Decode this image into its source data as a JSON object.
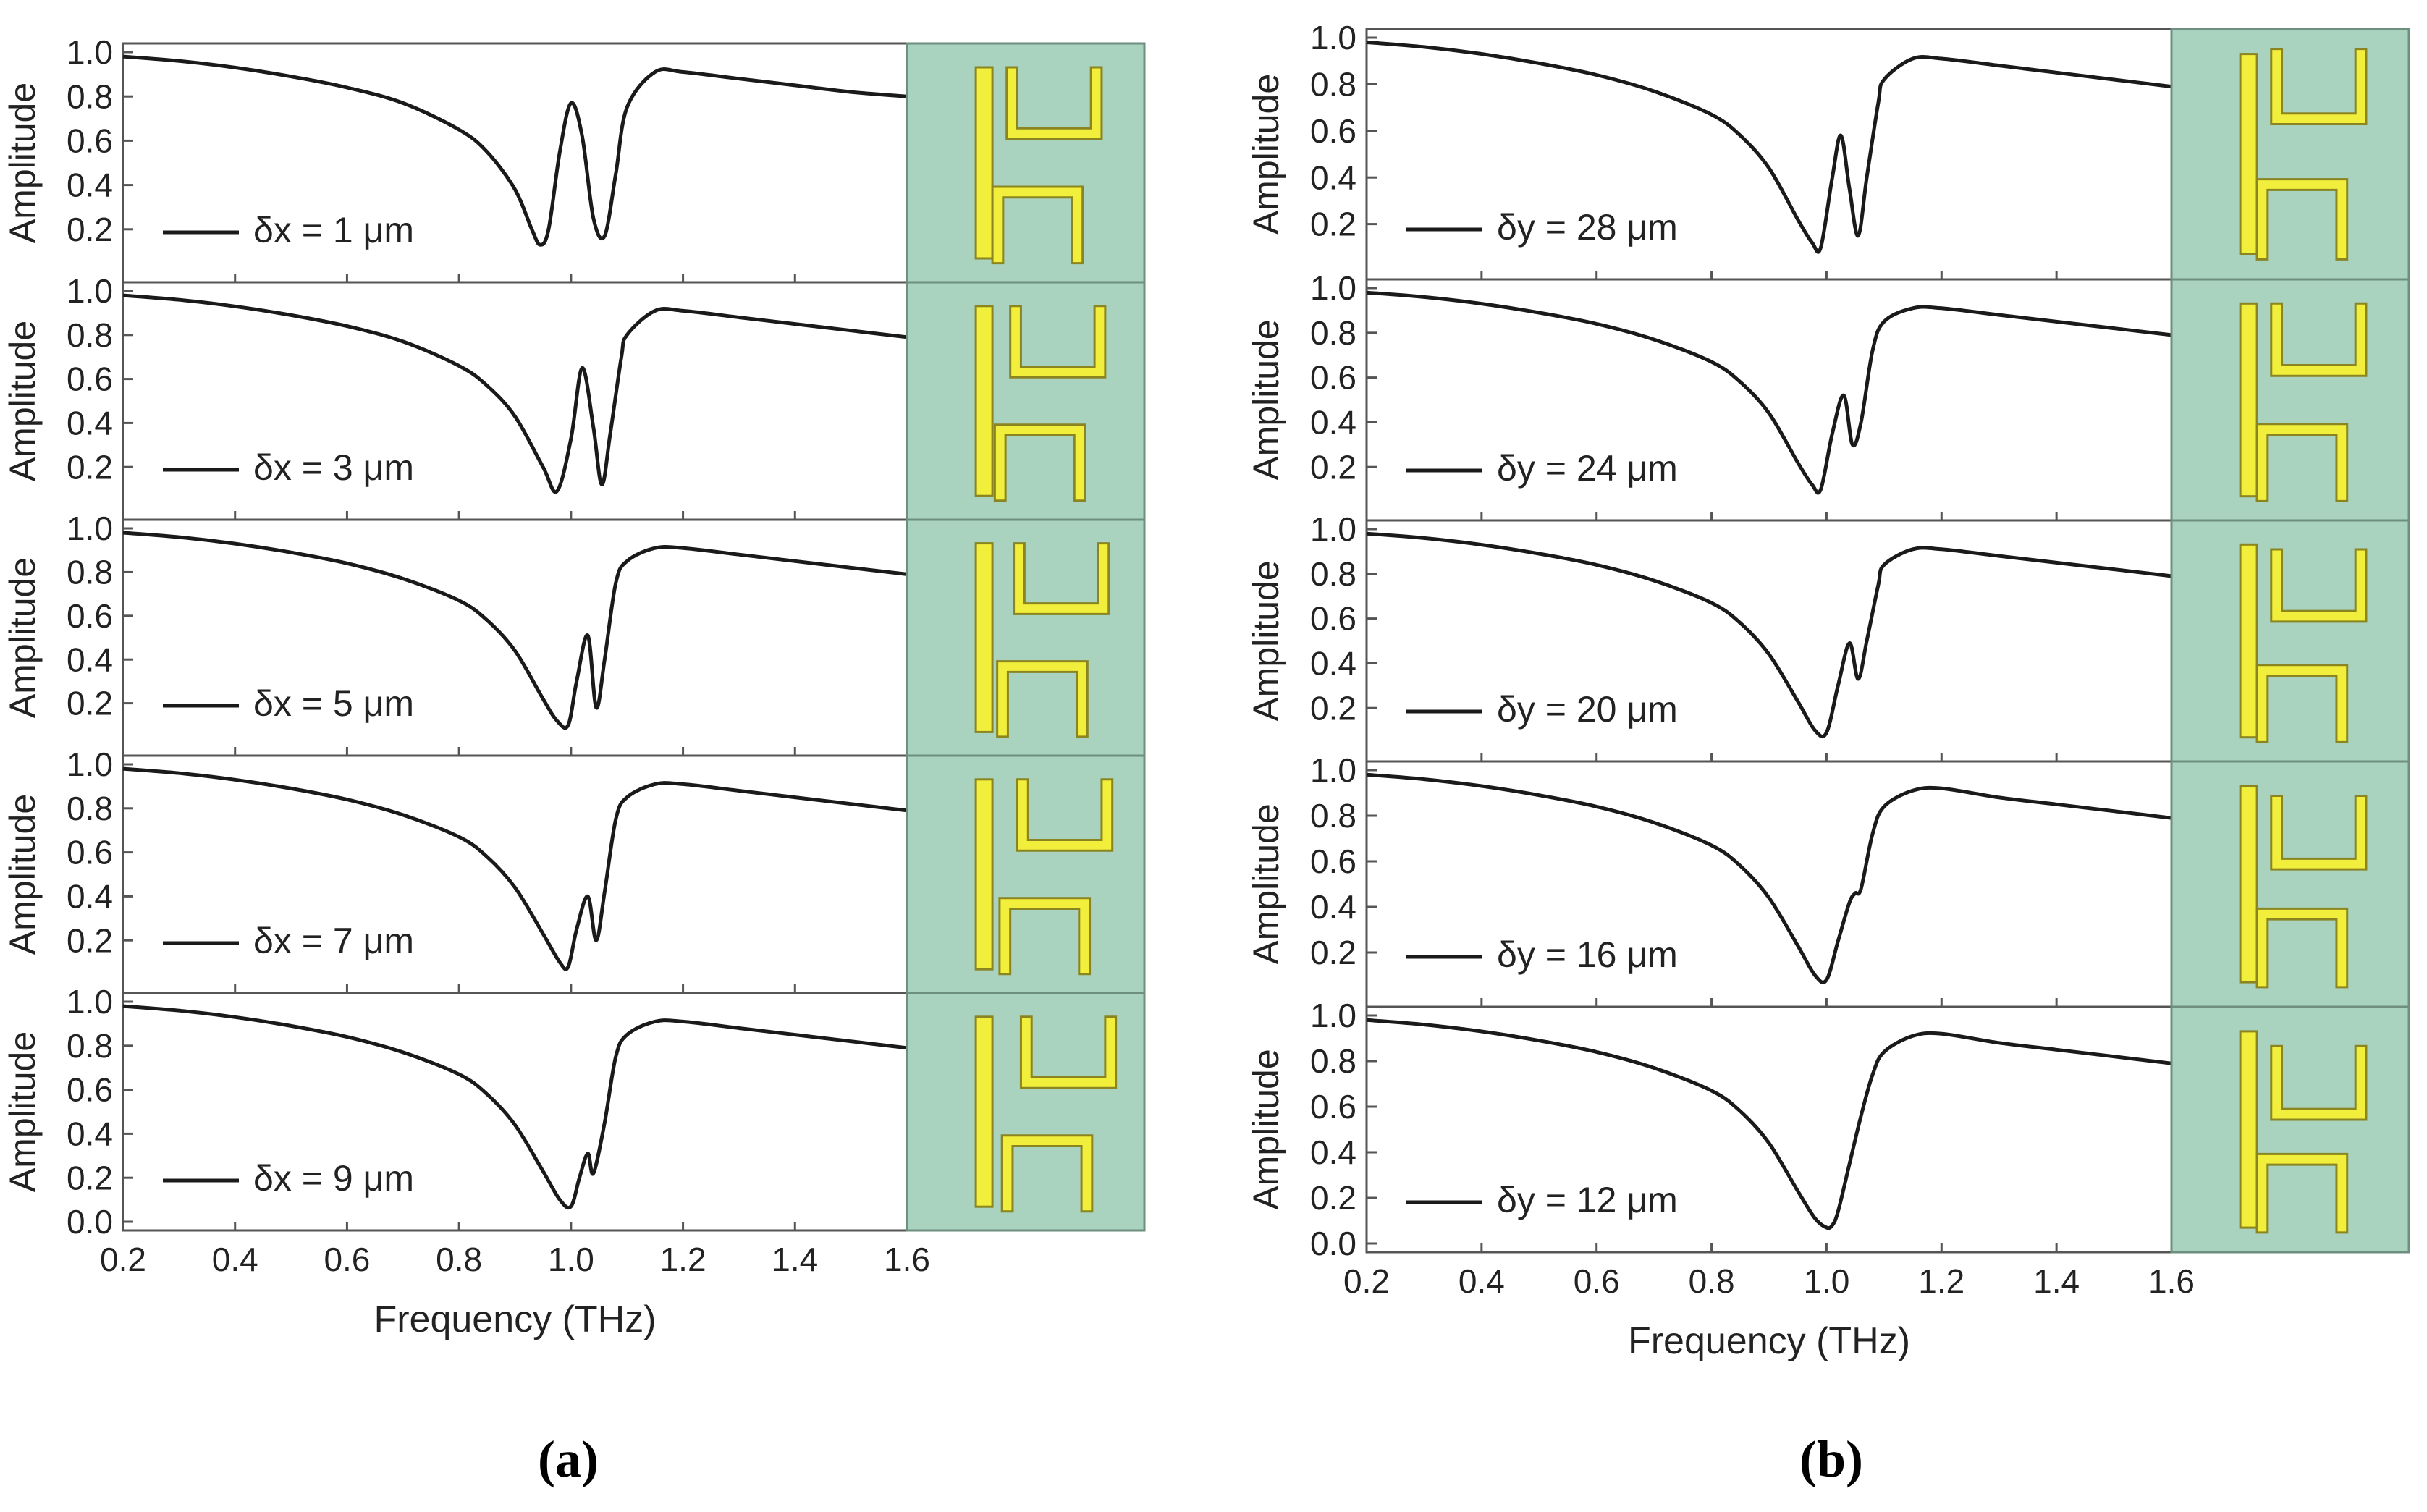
{
  "chart_data": [
    {
      "type": "line",
      "caption": "(a)",
      "xlabel": "Frequency (THz)",
      "ylabel": "Amplitude",
      "xlim": [
        0.2,
        1.6
      ],
      "ylim": [
        0.0,
        1.0
      ],
      "xticks": [
        "0.2",
        "0.4",
        "0.6",
        "0.8",
        "1.0",
        "1.2",
        "1.4",
        "1.6"
      ],
      "yticks": [
        "0.0",
        "0.2",
        "0.4",
        "0.6",
        "0.8",
        "1.0"
      ],
      "panels": [
        {
          "legend": "δx = 1 μm",
          "x": [
            0.2,
            0.3,
            0.4,
            0.5,
            0.6,
            0.7,
            0.8,
            0.85,
            0.9,
            0.93,
            0.945,
            0.96,
            0.98,
            1.0,
            1.02,
            1.04,
            1.06,
            1.08,
            1.1,
            1.15,
            1.2,
            1.3,
            1.4,
            1.5,
            1.6
          ],
          "y": [
            0.98,
            0.96,
            0.93,
            0.89,
            0.84,
            0.77,
            0.65,
            0.55,
            0.38,
            0.2,
            0.13,
            0.2,
            0.55,
            0.77,
            0.62,
            0.25,
            0.17,
            0.45,
            0.75,
            0.91,
            0.91,
            0.88,
            0.85,
            0.82,
            0.8
          ]
        },
        {
          "legend": "δx = 3 μm",
          "x": [
            0.2,
            0.3,
            0.4,
            0.5,
            0.6,
            0.7,
            0.8,
            0.85,
            0.9,
            0.95,
            0.975,
            1.0,
            1.02,
            1.04,
            1.055,
            1.07,
            1.09,
            1.1,
            1.15,
            1.2,
            1.3,
            1.4,
            1.5,
            1.6
          ],
          "y": [
            0.98,
            0.96,
            0.93,
            0.89,
            0.84,
            0.77,
            0.66,
            0.57,
            0.43,
            0.2,
            0.09,
            0.33,
            0.65,
            0.38,
            0.12,
            0.35,
            0.7,
            0.8,
            0.91,
            0.91,
            0.88,
            0.85,
            0.82,
            0.79
          ]
        },
        {
          "legend": "δx = 5 μm",
          "x": [
            0.2,
            0.3,
            0.4,
            0.5,
            0.6,
            0.7,
            0.8,
            0.85,
            0.9,
            0.95,
            0.975,
            0.995,
            1.01,
            1.03,
            1.045,
            1.06,
            1.08,
            1.1,
            1.15,
            1.2,
            1.3,
            1.4,
            1.5,
            1.6
          ],
          "y": [
            0.98,
            0.96,
            0.93,
            0.89,
            0.84,
            0.77,
            0.67,
            0.58,
            0.44,
            0.22,
            0.12,
            0.1,
            0.3,
            0.51,
            0.18,
            0.4,
            0.75,
            0.85,
            0.91,
            0.91,
            0.88,
            0.85,
            0.82,
            0.79
          ]
        },
        {
          "legend": "δx = 7 μm",
          "x": [
            0.2,
            0.3,
            0.4,
            0.5,
            0.6,
            0.7,
            0.8,
            0.85,
            0.9,
            0.95,
            0.98,
            0.995,
            1.01,
            1.03,
            1.045,
            1.06,
            1.08,
            1.1,
            1.15,
            1.2,
            1.3,
            1.4,
            1.5,
            1.6
          ],
          "y": [
            0.98,
            0.96,
            0.93,
            0.89,
            0.84,
            0.77,
            0.67,
            0.58,
            0.44,
            0.23,
            0.1,
            0.08,
            0.25,
            0.4,
            0.2,
            0.42,
            0.75,
            0.85,
            0.91,
            0.91,
            0.88,
            0.85,
            0.82,
            0.79
          ]
        },
        {
          "legend": "δx = 9 μm",
          "x": [
            0.2,
            0.3,
            0.4,
            0.5,
            0.6,
            0.7,
            0.8,
            0.85,
            0.9,
            0.95,
            0.98,
            1.0,
            1.015,
            1.03,
            1.04,
            1.06,
            1.08,
            1.1,
            1.15,
            1.2,
            1.3,
            1.4,
            1.5,
            1.6
          ],
          "y": [
            0.98,
            0.96,
            0.93,
            0.89,
            0.84,
            0.77,
            0.67,
            0.58,
            0.44,
            0.23,
            0.1,
            0.07,
            0.2,
            0.31,
            0.22,
            0.45,
            0.75,
            0.85,
            0.91,
            0.91,
            0.88,
            0.85,
            0.82,
            0.79
          ]
        }
      ]
    },
    {
      "type": "line",
      "caption": "(b)",
      "xlabel": "Frequency (THz)",
      "ylabel": "Amplitude",
      "xlim": [
        0.2,
        1.6
      ],
      "ylim": [
        0.0,
        1.0
      ],
      "xticks": [
        "0.2",
        "0.4",
        "0.6",
        "0.8",
        "1.0",
        "1.2",
        "1.4",
        "1.6"
      ],
      "yticks": [
        "0.0",
        "0.2",
        "0.4",
        "0.6",
        "0.8",
        "1.0"
      ],
      "panels": [
        {
          "legend": "δy = 28 μm",
          "x": [
            0.2,
            0.3,
            0.4,
            0.5,
            0.6,
            0.7,
            0.8,
            0.85,
            0.9,
            0.95,
            0.975,
            0.99,
            1.01,
            1.025,
            1.04,
            1.055,
            1.07,
            1.09,
            1.1,
            1.15,
            1.2,
            1.3,
            1.4,
            1.5,
            1.6
          ],
          "y": [
            0.98,
            0.96,
            0.93,
            0.89,
            0.84,
            0.77,
            0.67,
            0.58,
            0.44,
            0.22,
            0.12,
            0.1,
            0.4,
            0.58,
            0.35,
            0.15,
            0.4,
            0.72,
            0.82,
            0.91,
            0.91,
            0.88,
            0.85,
            0.82,
            0.79
          ]
        },
        {
          "legend": "δy = 24 μm",
          "x": [
            0.2,
            0.3,
            0.4,
            0.5,
            0.6,
            0.7,
            0.8,
            0.85,
            0.9,
            0.95,
            0.975,
            0.99,
            1.01,
            1.03,
            1.045,
            1.06,
            1.08,
            1.1,
            1.15,
            1.2,
            1.3,
            1.4,
            1.5,
            1.6
          ],
          "y": [
            0.98,
            0.96,
            0.93,
            0.89,
            0.84,
            0.77,
            0.67,
            0.58,
            0.44,
            0.22,
            0.12,
            0.1,
            0.35,
            0.52,
            0.3,
            0.4,
            0.72,
            0.85,
            0.91,
            0.91,
            0.88,
            0.85,
            0.82,
            0.79
          ]
        },
        {
          "legend": "δy = 20 μm",
          "x": [
            0.2,
            0.3,
            0.4,
            0.5,
            0.6,
            0.7,
            0.8,
            0.85,
            0.9,
            0.95,
            0.98,
            1.0,
            1.02,
            1.04,
            1.055,
            1.07,
            1.09,
            1.1,
            1.15,
            1.2,
            1.3,
            1.4,
            1.5,
            1.6
          ],
          "y": [
            0.98,
            0.96,
            0.93,
            0.89,
            0.84,
            0.77,
            0.67,
            0.58,
            0.44,
            0.23,
            0.1,
            0.09,
            0.3,
            0.49,
            0.33,
            0.5,
            0.75,
            0.84,
            0.91,
            0.91,
            0.88,
            0.85,
            0.82,
            0.79
          ]
        },
        {
          "legend": "δy = 16 μm",
          "x": [
            0.2,
            0.3,
            0.4,
            0.5,
            0.6,
            0.7,
            0.8,
            0.85,
            0.9,
            0.95,
            0.98,
            1.0,
            1.02,
            1.04,
            1.05,
            1.06,
            1.08,
            1.1,
            1.15,
            1.2,
            1.3,
            1.4,
            1.5,
            1.6
          ],
          "y": [
            0.98,
            0.96,
            0.93,
            0.89,
            0.84,
            0.77,
            0.67,
            0.58,
            0.44,
            0.23,
            0.1,
            0.08,
            0.25,
            0.42,
            0.46,
            0.48,
            0.72,
            0.84,
            0.91,
            0.92,
            0.88,
            0.85,
            0.82,
            0.79
          ]
        },
        {
          "legend": "δy = 12 μm",
          "x": [
            0.2,
            0.3,
            0.4,
            0.5,
            0.6,
            0.7,
            0.8,
            0.85,
            0.9,
            0.95,
            0.98,
            1.0,
            1.01,
            1.02,
            1.04,
            1.06,
            1.08,
            1.1,
            1.15,
            1.2,
            1.3,
            1.4,
            1.5,
            1.6
          ],
          "y": [
            0.98,
            0.96,
            0.93,
            0.89,
            0.84,
            0.77,
            0.67,
            0.58,
            0.44,
            0.23,
            0.11,
            0.07,
            0.08,
            0.14,
            0.35,
            0.56,
            0.74,
            0.84,
            0.91,
            0.92,
            0.88,
            0.85,
            0.82,
            0.79
          ]
        }
      ]
    }
  ],
  "colors": {
    "curve": "#1a1a1a",
    "axis": "#555555",
    "inset_bg": "#a9d3bf",
    "inset_border": "#6e8f80",
    "metal_fill": "#f2ee3c",
    "metal_stroke": "#8a8520"
  },
  "inset_structures": {
    "description_hidden": true,
    "a_dx": [
      1,
      3,
      5,
      7,
      9
    ],
    "b_dy": [
      28,
      24,
      20,
      16,
      12
    ]
  }
}
